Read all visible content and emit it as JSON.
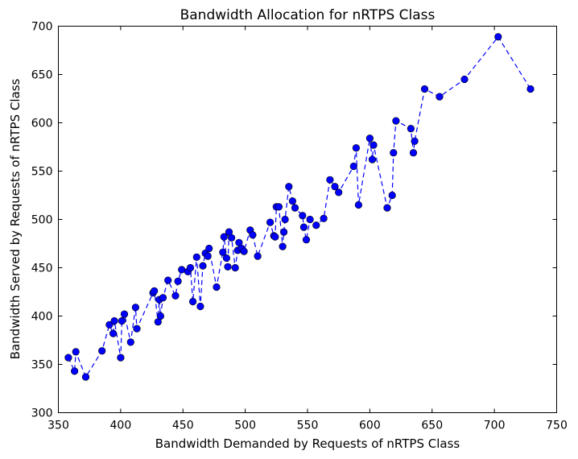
{
  "chart_data": {
    "type": "line",
    "title": "Bandwidth Allocation for nRTPS Class",
    "xlabel": "Bandwidth Demanded by Requests of nRTPS Class",
    "ylabel": "Bandwidth Served by Requests of nRTPS Class",
    "xlim": [
      350,
      750
    ],
    "ylim": [
      300,
      700
    ],
    "xticks": [
      350,
      400,
      450,
      500,
      550,
      600,
      650,
      700,
      750
    ],
    "yticks": [
      300,
      350,
      400,
      450,
      500,
      550,
      600,
      650,
      700
    ],
    "grid": false,
    "line_style": "dashed",
    "marker": "circle",
    "color": "#0000ff",
    "series": [
      {
        "points": [
          [
            358,
            357
          ],
          [
            363,
            343
          ],
          [
            364,
            363
          ],
          [
            372,
            337
          ],
          [
            385,
            364
          ],
          [
            391,
            391
          ],
          [
            394,
            382
          ],
          [
            395,
            395
          ],
          [
            400,
            357
          ],
          [
            401,
            395
          ],
          [
            403,
            402
          ],
          [
            408,
            373
          ],
          [
            412,
            409
          ],
          [
            413,
            387
          ],
          [
            426,
            424
          ],
          [
            427,
            426
          ],
          [
            430,
            394
          ],
          [
            431,
            417
          ],
          [
            432,
            400
          ],
          [
            434,
            419
          ],
          [
            438,
            437
          ],
          [
            444,
            421
          ],
          [
            446,
            436
          ],
          [
            449,
            448
          ],
          [
            454,
            446
          ],
          [
            456,
            450
          ],
          [
            458,
            415
          ],
          [
            461,
            461
          ],
          [
            464,
            410
          ],
          [
            466,
            452
          ],
          [
            468,
            465
          ],
          [
            470,
            462
          ],
          [
            471,
            470
          ],
          [
            477,
            430
          ],
          [
            482,
            466
          ],
          [
            483,
            482
          ],
          [
            485,
            460
          ],
          [
            486,
            451
          ],
          [
            487,
            487
          ],
          [
            489,
            481
          ],
          [
            492,
            450
          ],
          [
            494,
            468
          ],
          [
            495,
            476
          ],
          [
            497,
            470
          ],
          [
            499,
            467
          ],
          [
            504,
            489
          ],
          [
            506,
            484
          ],
          [
            510,
            462
          ],
          [
            520,
            497
          ],
          [
            523,
            483
          ],
          [
            524,
            482
          ],
          [
            525,
            513
          ],
          [
            527,
            513
          ],
          [
            530,
            472
          ],
          [
            531,
            487
          ],
          [
            532,
            500
          ],
          [
            535,
            534
          ],
          [
            538,
            519
          ],
          [
            540,
            512
          ],
          [
            546,
            504
          ],
          [
            547,
            492
          ],
          [
            549,
            479
          ],
          [
            552,
            500
          ],
          [
            557,
            494
          ],
          [
            563,
            501
          ],
          [
            568,
            541
          ],
          [
            572,
            534
          ],
          [
            575,
            528
          ],
          [
            587,
            555
          ],
          [
            589,
            574
          ],
          [
            591,
            515
          ],
          [
            600,
            584
          ],
          [
            602,
            562
          ],
          [
            603,
            577
          ],
          [
            614,
            512
          ],
          [
            618,
            525
          ],
          [
            619,
            569
          ],
          [
            621,
            602
          ],
          [
            633,
            594
          ],
          [
            635,
            569
          ],
          [
            636,
            581
          ],
          [
            644,
            635
          ],
          [
            656,
            627
          ],
          [
            676,
            645
          ],
          [
            703,
            689
          ],
          [
            729,
            635
          ]
        ]
      }
    ]
  }
}
